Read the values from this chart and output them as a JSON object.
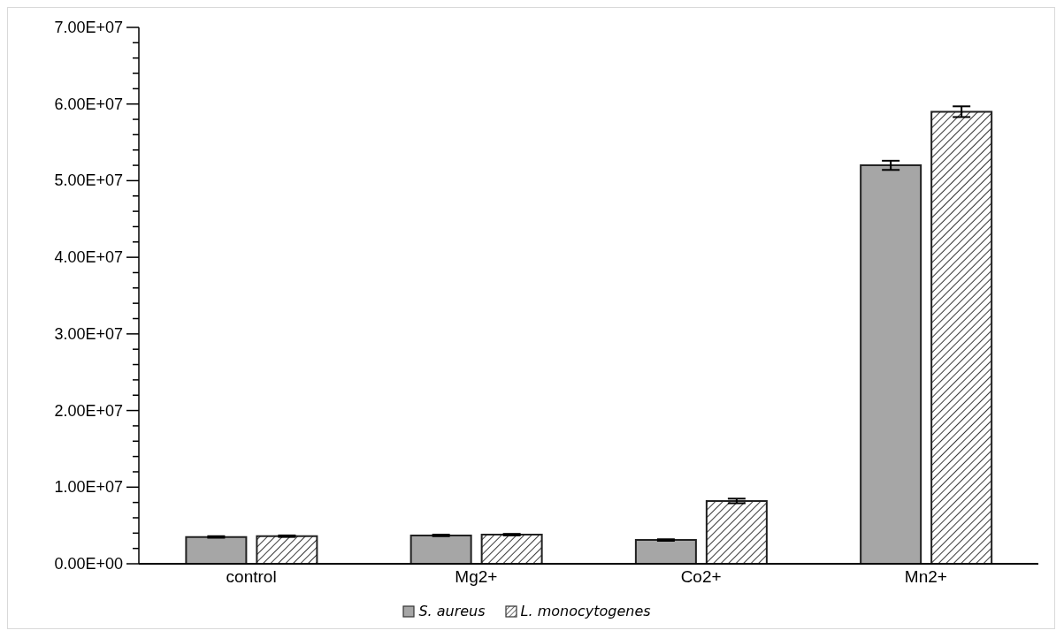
{
  "chart_data": {
    "type": "bar",
    "categories": [
      "control",
      "Mg2+",
      "Co2+",
      "Mn2+"
    ],
    "series": [
      {
        "name": "S. aureus",
        "color": "#a6a6a6",
        "values": [
          3500000,
          3700000,
          3100000,
          52000000
        ],
        "errors": [
          100000,
          100000,
          100000,
          600000
        ]
      },
      {
        "name": "L. monocytogenes",
        "color": "#222222",
        "values": [
          3600000,
          3800000,
          8200000,
          59000000
        ],
        "errors": [
          100000,
          100000,
          300000,
          700000
        ]
      }
    ],
    "ylim": [
      0,
      70000000
    ],
    "yticks": [
      {
        "value": 0,
        "label": "0.00E+00"
      },
      {
        "value": 2000000,
        "label": null
      },
      {
        "value": 4000000,
        "label": null
      },
      {
        "value": 6000000,
        "label": null
      },
      {
        "value": 8000000,
        "label": null
      },
      {
        "value": 10000000,
        "label": "1.00E+07"
      },
      {
        "value": 12000000,
        "label": null
      },
      {
        "value": 14000000,
        "label": null
      },
      {
        "value": 16000000,
        "label": null
      },
      {
        "value": 18000000,
        "label": null
      },
      {
        "value": 20000000,
        "label": "2.00E+07"
      },
      {
        "value": 22000000,
        "label": null
      },
      {
        "value": 24000000,
        "label": null
      },
      {
        "value": 26000000,
        "label": null
      },
      {
        "value": 28000000,
        "label": null
      },
      {
        "value": 30000000,
        "label": "3.00E+07"
      },
      {
        "value": 32000000,
        "label": null
      },
      {
        "value": 34000000,
        "label": null
      },
      {
        "value": 36000000,
        "label": null
      },
      {
        "value": 38000000,
        "label": null
      },
      {
        "value": 40000000,
        "label": "4.00E+07"
      },
      {
        "value": 42000000,
        "label": null
      },
      {
        "value": 44000000,
        "label": null
      },
      {
        "value": 46000000,
        "label": null
      },
      {
        "value": 48000000,
        "label": null
      },
      {
        "value": 50000000,
        "label": "5.00E+07"
      },
      {
        "value": 52000000,
        "label": null
      },
      {
        "value": 54000000,
        "label": null
      },
      {
        "value": 56000000,
        "label": null
      },
      {
        "value": 58000000,
        "label": null
      },
      {
        "value": 60000000,
        "label": "6.00E+07"
      },
      {
        "value": 62000000,
        "label": null
      },
      {
        "value": 64000000,
        "label": null
      },
      {
        "value": 66000000,
        "label": null
      },
      {
        "value": 68000000,
        "label": null
      },
      {
        "value": 70000000,
        "label": "7.00E+07"
      }
    ],
    "grid": false,
    "legend": "bottom"
  }
}
